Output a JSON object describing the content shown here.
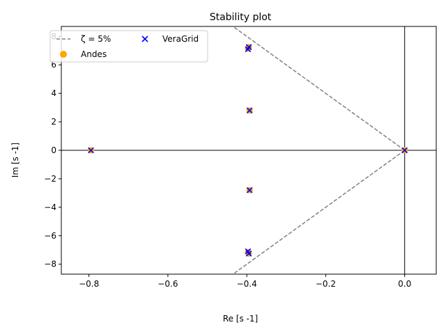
{
  "chart_data": {
    "type": "scatter",
    "title": "Stability plot",
    "xlabel": "Re [s -1]",
    "ylabel": "Im [s -1]",
    "xlim": [
      -0.87,
      0.08
    ],
    "ylim": [
      -8.7,
      8.7
    ],
    "xticks": [
      -0.8,
      -0.6,
      -0.4,
      -0.2,
      0.0
    ],
    "xtick_labels": [
      "−0.8",
      "−0.6",
      "−0.4",
      "−0.2",
      "0.0"
    ],
    "yticks": [
      8,
      6,
      4,
      2,
      0,
      -2,
      -4,
      -6,
      -8
    ],
    "ytick_labels": [
      "8",
      "6",
      "4",
      "2",
      "0",
      "−2",
      "−4",
      "−6",
      "−8"
    ],
    "grid": false,
    "legend_position": "top-left",
    "damping_line": {
      "label": "ζ = 5%",
      "color": "#808080",
      "slope": 20
    },
    "series": [
      {
        "name": "Andes",
        "marker": "circle",
        "color": "#ffa500",
        "points": [
          [
            -0.795,
            0.0
          ],
          [
            -0.393,
            2.8
          ],
          [
            -0.393,
            -2.8
          ],
          [
            -0.397,
            7.15
          ],
          [
            -0.395,
            7.25
          ],
          [
            -0.397,
            -7.15
          ],
          [
            -0.395,
            -7.25
          ],
          [
            0.0,
            0.0
          ]
        ]
      },
      {
        "name": "VeraGrid",
        "marker": "x",
        "color": "#0000ff",
        "points": [
          [
            -0.795,
            0.0
          ],
          [
            -0.393,
            2.8
          ],
          [
            -0.393,
            -2.8
          ],
          [
            -0.397,
            7.1
          ],
          [
            -0.395,
            7.25
          ],
          [
            -0.397,
            -7.1
          ],
          [
            -0.395,
            -7.25
          ],
          [
            0.0,
            0.0
          ]
        ]
      }
    ]
  }
}
